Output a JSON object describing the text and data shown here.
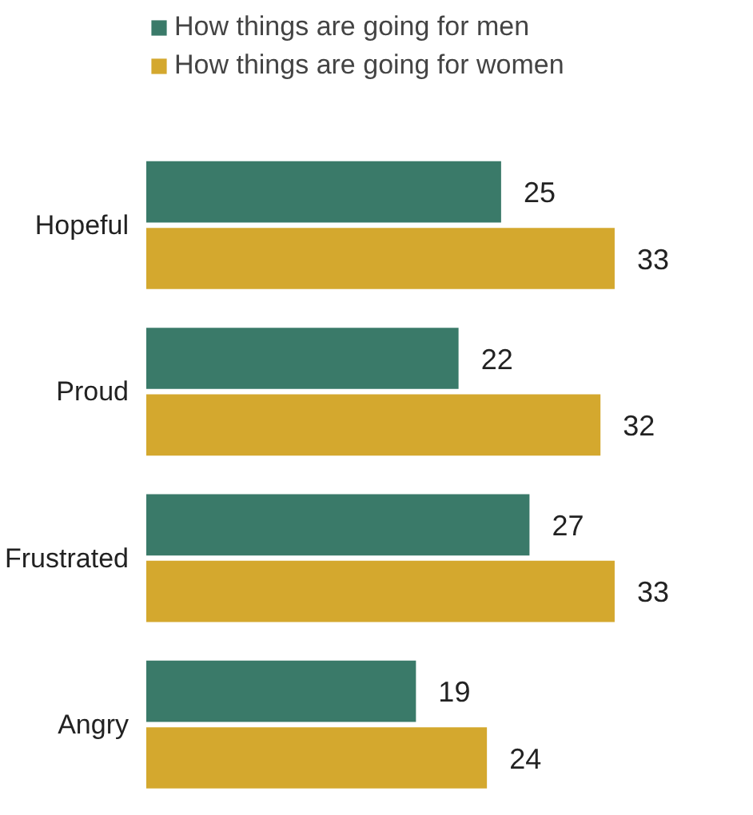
{
  "chart_data": {
    "type": "bar",
    "orientation": "horizontal",
    "categories": [
      "Hopeful",
      "Proud",
      "Frustrated",
      "Angry"
    ],
    "series": [
      {
        "name": "How things are going for men",
        "color": "#3a7a69",
        "values": [
          25,
          22,
          27,
          19
        ]
      },
      {
        "name": "How things are going for women",
        "color": "#d4a82e",
        "values": [
          33,
          32,
          33,
          24
        ]
      }
    ],
    "data_labels": true,
    "legend": "top",
    "grid": false,
    "tick_labels": "y"
  }
}
